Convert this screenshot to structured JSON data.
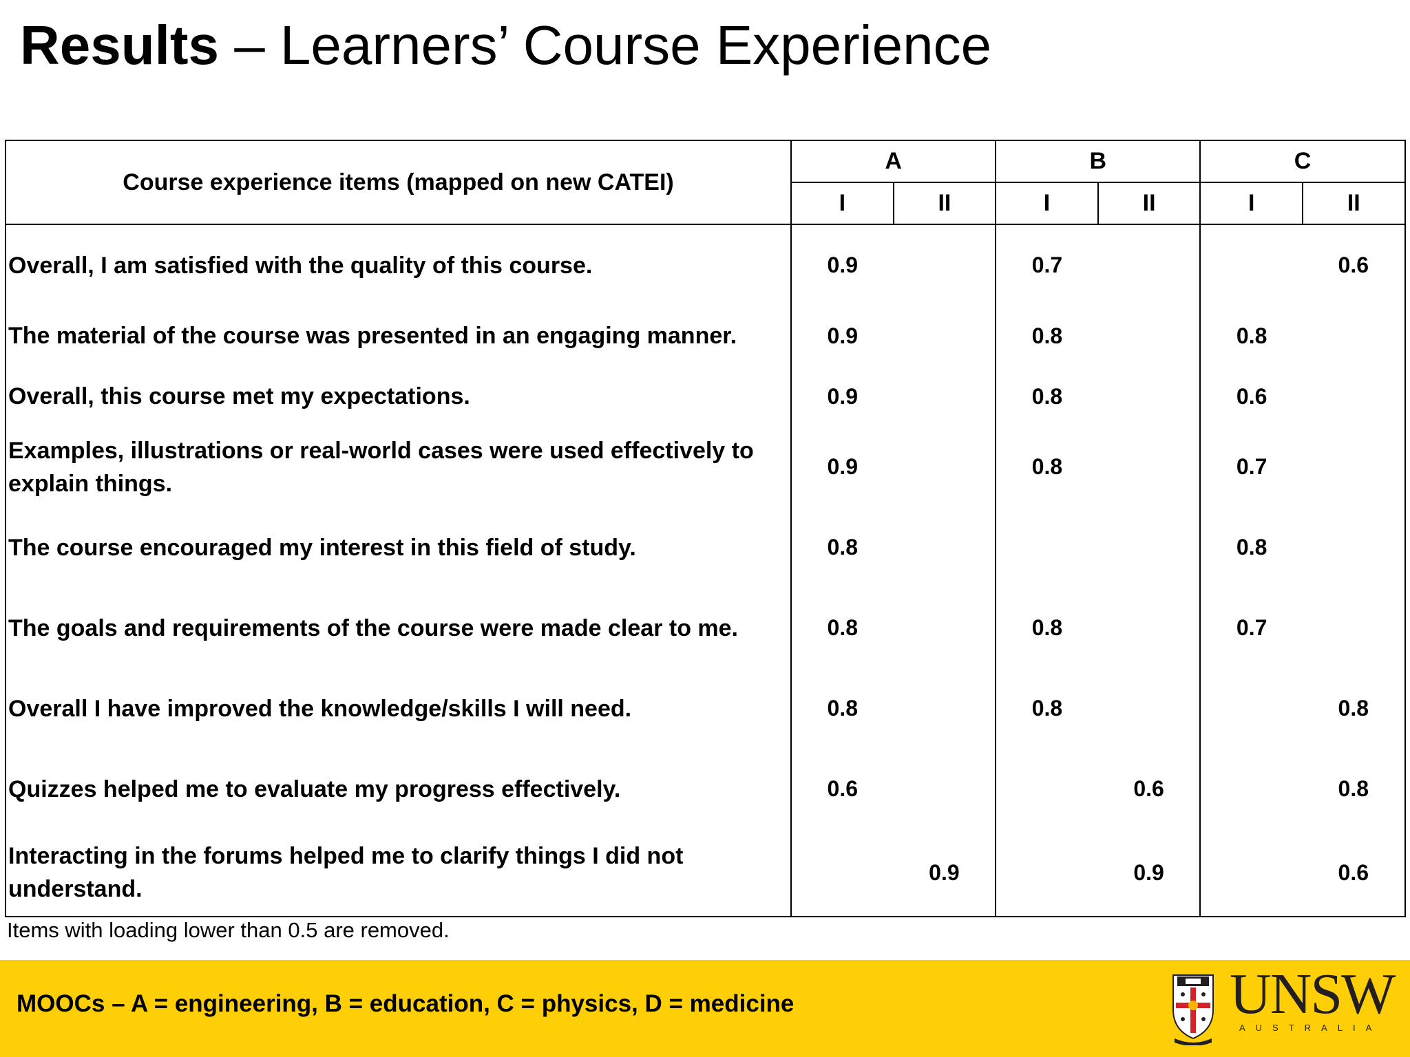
{
  "title": {
    "bold": "Results",
    "rest": " – Learners’ Course Experience"
  },
  "table": {
    "item_header": "Course experience items (mapped on new CATEI)",
    "groups": [
      "A",
      "B",
      "C"
    ],
    "subheaders": [
      "I",
      "II",
      "I",
      "II",
      "I",
      "II"
    ],
    "rows": [
      {
        "item": "Overall, I am satisfied with the quality of this course.",
        "values": [
          "0.9",
          "",
          "0.7",
          "",
          "",
          "0.6"
        ]
      },
      {
        "item": "The material of the course was presented in an engaging manner.",
        "values": [
          "0.9",
          "",
          "0.8",
          "",
          "0.8",
          ""
        ]
      },
      {
        "item": "Overall, this course met my expectations.",
        "values": [
          "0.9",
          "",
          "0.8",
          "",
          "0.6",
          ""
        ]
      },
      {
        "item": "Examples, illustrations or real-world cases were used effectively to explain things.",
        "values": [
          "0.9",
          "",
          "0.8",
          "",
          "0.7",
          ""
        ]
      },
      {
        "item": "The course encouraged my interest in this field of study.",
        "values": [
          "0.8",
          "",
          "",
          "",
          "0.8",
          ""
        ]
      },
      {
        "item": "The goals and requirements of the course were made clear to me.",
        "values": [
          "0.8",
          "",
          "0.8",
          "",
          "0.7",
          ""
        ]
      },
      {
        "item": "Overall I have improved the knowledge/skills I will need.",
        "values": [
          "0.8",
          "",
          "0.8",
          "",
          "",
          "0.8"
        ]
      },
      {
        "item": "Quizzes helped me to evaluate my progress effectively.",
        "values": [
          "0.6",
          "",
          "",
          "0.6",
          "",
          "0.8"
        ]
      },
      {
        "item": "Interacting in the forums helped me to clarify things I did not understand.",
        "values": [
          "",
          "0.9",
          "",
          "0.9",
          "",
          "0.6"
        ]
      }
    ]
  },
  "footnote": "Items with loading lower than 0.5 are removed.",
  "footer": {
    "text": "MOOCs – A = engineering, B = education, C = physics, D = medicine",
    "logo_word": "UNSW",
    "logo_sub": "AUSTRALIA",
    "bar_color": "#fecf07"
  }
}
